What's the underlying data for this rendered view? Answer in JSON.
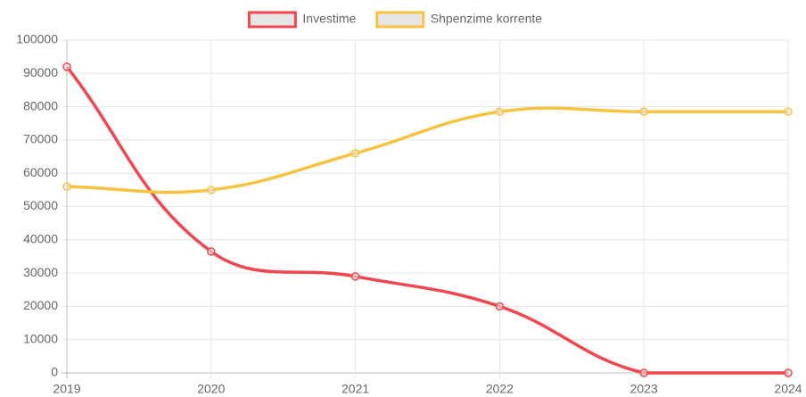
{
  "chart_data": {
    "type": "line",
    "categories": [
      "2019",
      "2020",
      "2021",
      "2022",
      "2023",
      "2024"
    ],
    "series": [
      {
        "name": "Investime",
        "color": "#f0464f",
        "values": [
          92000,
          36500,
          29000,
          20000,
          0,
          0
        ]
      },
      {
        "name": "Shpenzime korrente",
        "color": "#f5c342",
        "values": [
          56000,
          55000,
          66000,
          78500,
          78500,
          78500
        ]
      }
    ],
    "ylim": [
      0,
      100000
    ],
    "yticks": [
      0,
      10000,
      20000,
      30000,
      40000,
      50000,
      60000,
      70000,
      80000,
      90000,
      100000
    ],
    "grid": true,
    "legend": "top"
  }
}
